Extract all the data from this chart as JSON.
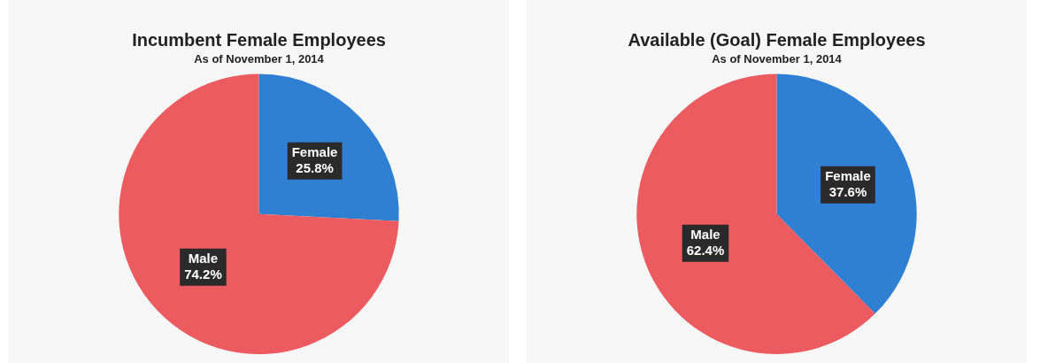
{
  "chart_data": [
    {
      "type": "pie",
      "title": "Incumbent Female Employees",
      "subtitle": "As of November 1, 2014",
      "categories": [
        "Female",
        "Male"
      ],
      "values": [
        25.8,
        74.2
      ],
      "colors": [
        "#2f80d2",
        "#ec5b60"
      ],
      "value_labels": [
        "25.8%",
        "74.2%"
      ],
      "legend": false
    },
    {
      "type": "pie",
      "title": "Available (Goal) Female Employees",
      "subtitle": "As of November 1, 2014",
      "categories": [
        "Female",
        "Male"
      ],
      "values": [
        37.6,
        62.4
      ],
      "colors": [
        "#2f80d2",
        "#ec5b60"
      ],
      "value_labels": [
        "37.6%",
        "62.4%"
      ],
      "legend": false
    }
  ]
}
